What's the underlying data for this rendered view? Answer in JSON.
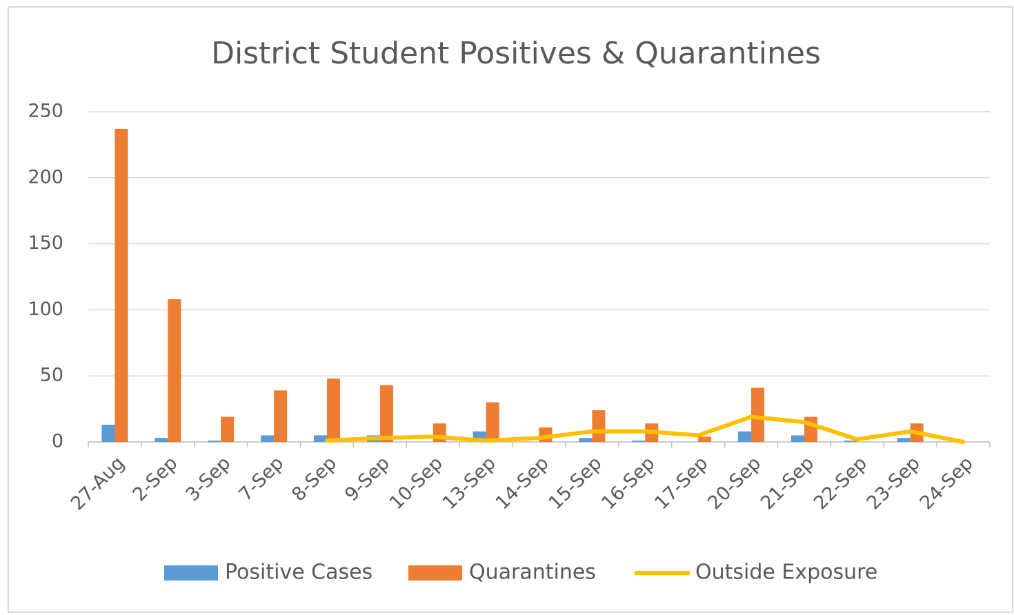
{
  "chart_data": {
    "type": "bar",
    "title": "District Student Positives & Quarantines",
    "categories": [
      "27-Aug",
      "2-Sep",
      "3-Sep",
      "7-Sep",
      "8-Sep",
      "9-Sep",
      "10-Sep",
      "13-Sep",
      "14-Sep",
      "15-Sep",
      "16-Sep",
      "17-Sep",
      "20-Sep",
      "21-Sep",
      "22-Sep",
      "23-Sep",
      "24-Sep"
    ],
    "series": [
      {
        "name": "Positive Cases",
        "type": "bar",
        "color": "#5b9bd5",
        "values": [
          13,
          3,
          1,
          5,
          5,
          5,
          0,
          8,
          0,
          3,
          1,
          0,
          8,
          5,
          1,
          3,
          0
        ]
      },
      {
        "name": "Quarantines",
        "type": "bar",
        "color": "#ed7d31",
        "values": [
          237,
          108,
          19,
          39,
          48,
          43,
          14,
          30,
          11,
          24,
          14,
          4,
          41,
          19,
          0,
          14,
          0
        ]
      },
      {
        "name": "Outside Exposure",
        "type": "line",
        "color": "#ffc000",
        "values": [
          null,
          null,
          null,
          null,
          1,
          3,
          4,
          1,
          3,
          8,
          8,
          5,
          19,
          15,
          2,
          8,
          0
        ]
      }
    ],
    "ylim": [
      0,
      250
    ],
    "yticks": [
      0,
      50,
      100,
      150,
      200,
      250
    ],
    "grid": true,
    "legend": "bottom"
  }
}
